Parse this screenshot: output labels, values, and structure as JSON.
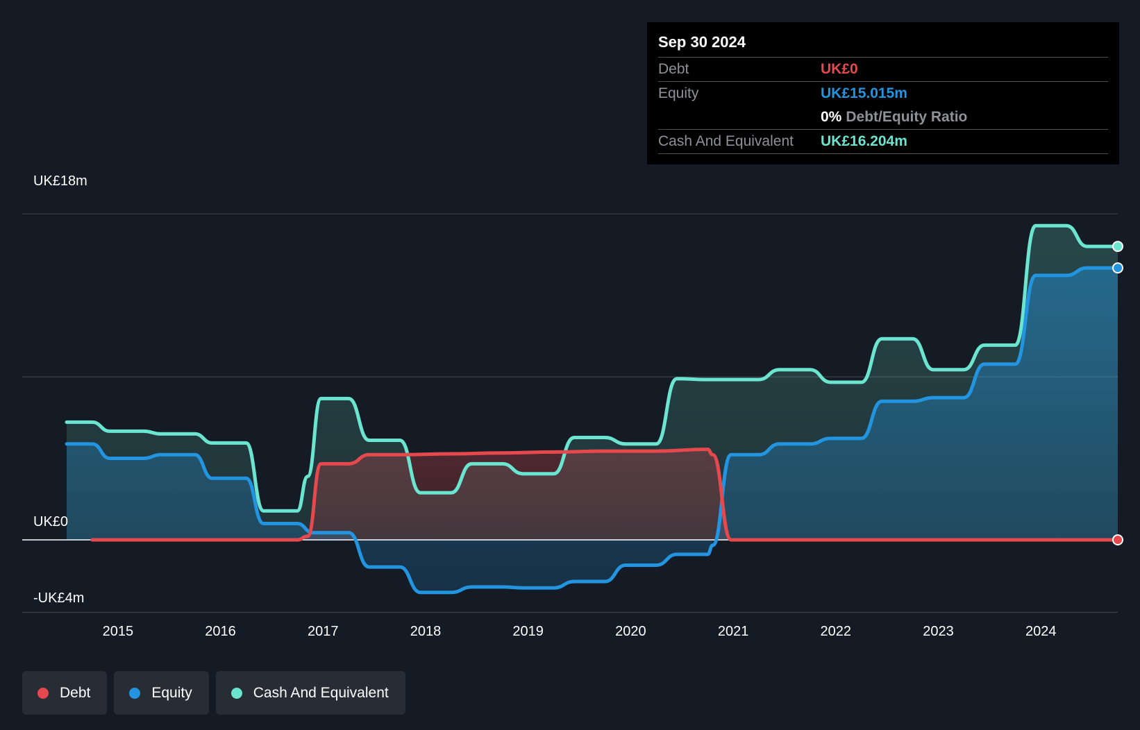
{
  "tooltip": {
    "date": "Sep 30 2024",
    "debt_label": "Debt",
    "debt_value": "UK£0",
    "equity_label": "Equity",
    "equity_value": "UK£15.015m",
    "ratio_pct": "0%",
    "ratio_label": "Debt/Equity Ratio",
    "cash_label": "Cash And Equivalent",
    "cash_value": "UK£16.204m"
  },
  "legend": [
    {
      "label": "Debt",
      "color": "#e5484d"
    },
    {
      "label": "Equity",
      "color": "#2394df"
    },
    {
      "label": "Cash And Equivalent",
      "color": "#6be4d0"
    }
  ],
  "chart_data": {
    "type": "area",
    "y_axis_labels": [
      "UK£18m",
      "UK£0",
      "-UK£4m"
    ],
    "ylim": [
      -4,
      18
    ],
    "xlim": [
      2014.5,
      2024.75
    ],
    "x_ticks": [
      2015,
      2016,
      2017,
      2018,
      2019,
      2020,
      2021,
      2022,
      2023,
      2024
    ],
    "x_tick_labels": [
      "2015",
      "2016",
      "2017",
      "2018",
      "2019",
      "2020",
      "2021",
      "2022",
      "2023",
      "2024"
    ],
    "grid": true,
    "legend_position": "bottom-left",
    "colors": {
      "debt": "#e5484d",
      "equity": "#2394df",
      "cash": "#6be4d0"
    },
    "series": [
      {
        "name": "Debt",
        "x": [
          2014.75,
          2016.75,
          2016.85,
          2016.98,
          2017.25,
          2017.45,
          2017.75,
          2018.25,
          2018.75,
          2019.25,
          2019.75,
          2020.25,
          2020.75,
          2020.8,
          2020.98,
          2024.75
        ],
        "values": [
          0,
          0,
          0.2,
          4.2,
          4.2,
          4.7,
          4.7,
          4.75,
          4.8,
          4.85,
          4.9,
          4.9,
          5.0,
          4.7,
          0,
          0
        ]
      },
      {
        "name": "Equity",
        "x": [
          2014.5,
          2014.75,
          2014.92,
          2015.25,
          2015.42,
          2015.75,
          2015.92,
          2016.25,
          2016.42,
          2016.75,
          2016.9,
          2017.25,
          2017.45,
          2017.75,
          2017.95,
          2018.25,
          2018.45,
          2018.75,
          2018.95,
          2019.25,
          2019.45,
          2019.75,
          2019.95,
          2020.25,
          2020.45,
          2020.75,
          2020.8,
          2020.98,
          2021.25,
          2021.45,
          2021.75,
          2021.95,
          2022.25,
          2022.45,
          2022.75,
          2022.95,
          2023.25,
          2023.45,
          2023.75,
          2023.95,
          2024.25,
          2024.45,
          2024.75
        ],
        "values": [
          5.3,
          5.3,
          4.5,
          4.5,
          4.7,
          4.7,
          3.4,
          3.4,
          0.9,
          0.9,
          0.4,
          0.4,
          -1.5,
          -1.5,
          -2.9,
          -2.9,
          -2.6,
          -2.6,
          -2.65,
          -2.65,
          -2.3,
          -2.3,
          -1.4,
          -1.4,
          -0.8,
          -0.8,
          -0.3,
          4.7,
          4.7,
          5.3,
          5.3,
          5.6,
          5.6,
          7.65,
          7.65,
          7.85,
          7.85,
          9.7,
          9.7,
          14.6,
          14.6,
          15.015,
          15.015
        ]
      },
      {
        "name": "Cash And Equivalent",
        "x": [
          2014.5,
          2014.75,
          2014.92,
          2015.25,
          2015.42,
          2015.75,
          2015.92,
          2016.25,
          2016.42,
          2016.75,
          2016.85,
          2016.98,
          2017.25,
          2017.45,
          2017.75,
          2017.95,
          2018.25,
          2018.45,
          2018.75,
          2018.95,
          2019.25,
          2019.45,
          2019.75,
          2019.95,
          2020.25,
          2020.45,
          2020.75,
          2021.25,
          2021.45,
          2021.75,
          2021.95,
          2022.25,
          2022.45,
          2022.75,
          2022.95,
          2023.25,
          2023.45,
          2023.75,
          2023.95,
          2024.25,
          2024.45,
          2024.75
        ],
        "values": [
          6.5,
          6.5,
          6.0,
          6.0,
          5.85,
          5.85,
          5.35,
          5.35,
          1.6,
          1.6,
          3.5,
          7.8,
          7.8,
          5.5,
          5.5,
          2.6,
          2.6,
          4.2,
          4.2,
          3.65,
          3.65,
          5.65,
          5.65,
          5.3,
          5.3,
          8.9,
          8.85,
          8.85,
          9.4,
          9.4,
          8.7,
          8.7,
          11.1,
          11.1,
          9.4,
          9.4,
          10.75,
          10.75,
          17.35,
          17.35,
          16.204,
          16.204
        ]
      }
    ]
  }
}
